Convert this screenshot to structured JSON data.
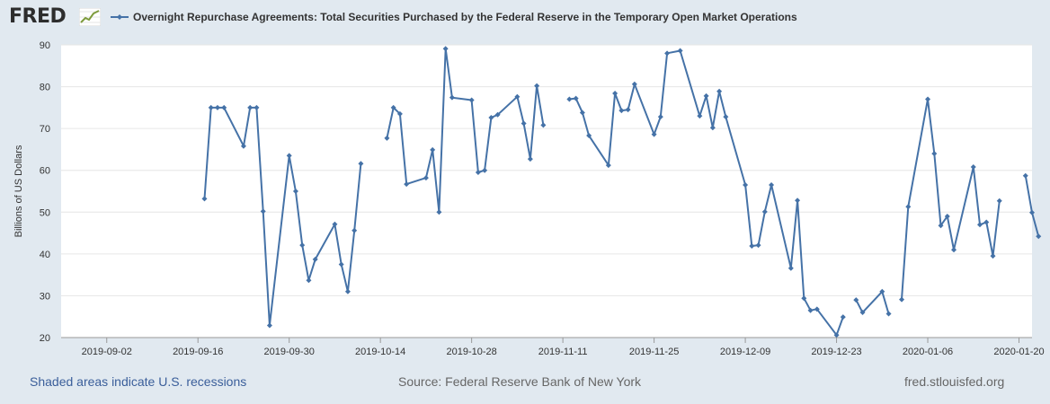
{
  "header": {
    "logo_text": "FRED",
    "logo_icon": "line-graph-icon"
  },
  "colors": {
    "series": "#4572a7",
    "background": "#e1e9f0",
    "plot": "#ffffff",
    "grid": "#e6e6e6",
    "logo_line": "#7d9b3c",
    "recession_link": "#3a5e9a"
  },
  "footer": {
    "recession_note": "Shaded areas indicate U.S. recessions",
    "source": "Source: Federal Reserve Bank of New York",
    "url": "fred.stlouisfed.org"
  },
  "chart_data": {
    "type": "line",
    "title": "",
    "xlabel": "",
    "ylabel": "Billions of US Dollars",
    "ylim": [
      20,
      90
    ],
    "xlim": [
      "2019-08-26",
      "2020-01-22"
    ],
    "yticks": [
      20,
      30,
      40,
      50,
      60,
      70,
      80,
      90
    ],
    "xticks": [
      "2019-09-02",
      "2019-09-16",
      "2019-09-30",
      "2019-10-14",
      "2019-10-28",
      "2019-11-11",
      "2019-11-25",
      "2019-12-09",
      "2019-12-23",
      "2020-01-06",
      "2020-01-20"
    ],
    "grid": true,
    "legend_position": "top-left",
    "series": [
      {
        "name": "Overnight Repurchase Agreements: Total Securities Purchased by the Federal Reserve in the Temporary Open Market Operations",
        "segments": [
          [
            [
              "2019-09-17",
              53.2
            ],
            [
              "2019-09-18",
              75.0
            ],
            [
              "2019-09-19",
              75.0
            ],
            [
              "2019-09-20",
              75.0
            ],
            [
              "2019-09-23",
              65.8
            ],
            [
              "2019-09-24",
              75.0
            ],
            [
              "2019-09-25",
              75.0
            ],
            [
              "2019-09-26",
              50.2
            ],
            [
              "2019-09-27",
              22.9
            ],
            [
              "2019-09-30",
              63.5
            ],
            [
              "2019-10-01",
              55.0
            ],
            [
              "2019-10-02",
              42.1
            ],
            [
              "2019-10-03",
              33.7
            ],
            [
              "2019-10-04",
              38.7
            ],
            [
              "2019-10-07",
              47.1
            ],
            [
              "2019-10-08",
              37.5
            ],
            [
              "2019-10-09",
              31.0
            ],
            [
              "2019-10-10",
              45.6
            ],
            [
              "2019-10-11",
              61.6
            ]
          ],
          [
            [
              "2019-10-15",
              67.7
            ],
            [
              "2019-10-16",
              75.0
            ],
            [
              "2019-10-17",
              73.5
            ],
            [
              "2019-10-18",
              56.7
            ],
            [
              "2019-10-21",
              58.2
            ],
            [
              "2019-10-22",
              64.9
            ],
            [
              "2019-10-23",
              50.0
            ],
            [
              "2019-10-24",
              89.1
            ],
            [
              "2019-10-25",
              77.4
            ],
            [
              "2019-10-28",
              76.8
            ],
            [
              "2019-10-29",
              59.5
            ],
            [
              "2019-10-30",
              60.0
            ],
            [
              "2019-10-31",
              72.6
            ],
            [
              "2019-11-01",
              73.3
            ],
            [
              "2019-11-04",
              77.6
            ],
            [
              "2019-11-05",
              71.2
            ],
            [
              "2019-11-06",
              62.7
            ],
            [
              "2019-11-07",
              80.2
            ],
            [
              "2019-11-08",
              70.8
            ]
          ],
          [
            [
              "2019-11-12",
              77.0
            ],
            [
              "2019-11-13",
              77.2
            ],
            [
              "2019-11-14",
              73.8
            ],
            [
              "2019-11-15",
              68.3
            ],
            [
              "2019-11-18",
              61.2
            ],
            [
              "2019-11-19",
              78.4
            ],
            [
              "2019-11-20",
              74.3
            ],
            [
              "2019-11-21",
              74.5
            ],
            [
              "2019-11-22",
              80.6
            ],
            [
              "2019-11-25",
              68.6
            ],
            [
              "2019-11-26",
              72.8
            ],
            [
              "2019-11-27",
              88.0
            ],
            [
              "2019-11-29",
              88.6
            ],
            [
              "2019-12-02",
              73.0
            ],
            [
              "2019-12-03",
              77.8
            ],
            [
              "2019-12-04",
              70.2
            ],
            [
              "2019-12-05",
              78.9
            ],
            [
              "2019-12-06",
              72.8
            ],
            [
              "2019-12-09",
              56.5
            ],
            [
              "2019-12-10",
              41.9
            ],
            [
              "2019-12-11",
              42.1
            ],
            [
              "2019-12-12",
              50.1
            ],
            [
              "2019-12-13",
              56.5
            ],
            [
              "2019-12-16",
              36.6
            ],
            [
              "2019-12-17",
              52.8
            ],
            [
              "2019-12-18",
              29.4
            ],
            [
              "2019-12-19",
              26.5
            ],
            [
              "2019-12-20",
              26.8
            ],
            [
              "2019-12-23",
              20.6
            ],
            [
              "2019-12-24",
              24.9
            ]
          ],
          [
            [
              "2019-12-26",
              29.0
            ],
            [
              "2019-12-27",
              26.0
            ],
            [
              "2019-12-30",
              31.0
            ],
            [
              "2019-12-31",
              25.7
            ]
          ],
          [
            [
              "2020-01-02",
              29.1
            ],
            [
              "2020-01-03",
              51.3
            ],
            [
              "2020-01-06",
              77.0
            ],
            [
              "2020-01-07",
              64.0
            ],
            [
              "2020-01-08",
              46.8
            ],
            [
              "2020-01-09",
              49.0
            ],
            [
              "2020-01-10",
              41.0
            ],
            [
              "2020-01-13",
              60.8
            ],
            [
              "2020-01-14",
              47.0
            ],
            [
              "2020-01-15",
              47.6
            ],
            [
              "2020-01-16",
              39.5
            ],
            [
              "2020-01-17",
              52.7
            ]
          ],
          [
            [
              "2020-01-21",
              58.7
            ],
            [
              "2020-01-22",
              49.9
            ],
            [
              "2020-01-23",
              44.2
            ]
          ]
        ]
      }
    ]
  }
}
